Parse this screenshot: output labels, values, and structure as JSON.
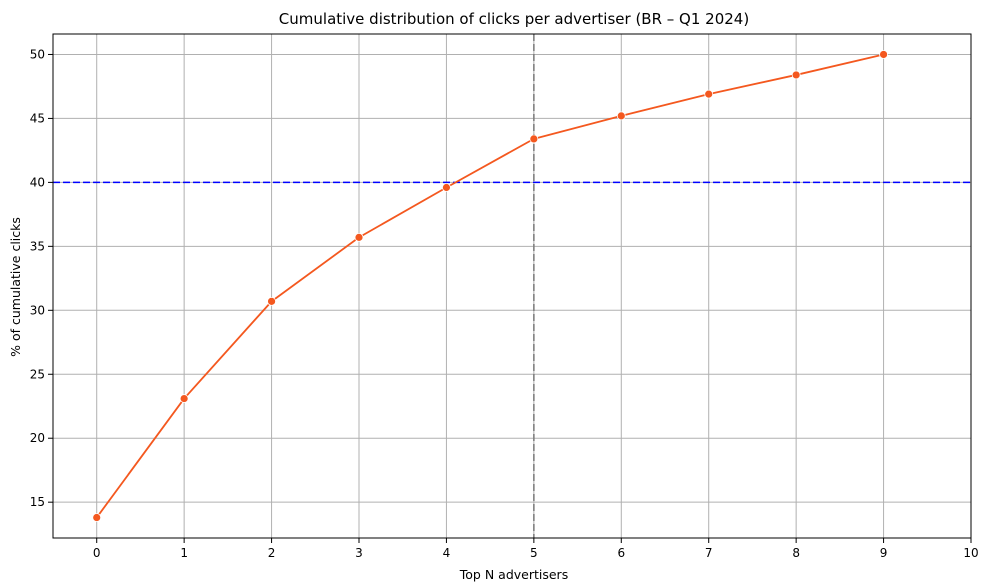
{
  "chart_data": {
    "type": "line",
    "title": "Cumulative distribution of clicks per advertiser (BR – Q1 2024)",
    "xlabel": "Top N advertisers",
    "ylabel": "% of cumulative clicks",
    "x": [
      0,
      1,
      2,
      3,
      4,
      5,
      6,
      7,
      8,
      9
    ],
    "series": [
      {
        "values": [
          13.8,
          23.1,
          30.7,
          35.7,
          39.6,
          43.4,
          45.2,
          46.9,
          48.4,
          50.0
        ],
        "color": "#f4581f"
      }
    ],
    "xlim": [
      -0.5,
      10
    ],
    "ylim": [
      12.2,
      51.6
    ],
    "xticks": [
      "0",
      "1",
      "2",
      "3",
      "4",
      "5",
      "6",
      "7",
      "8",
      "9",
      "10"
    ],
    "yticks": [
      "15",
      "20",
      "25",
      "30",
      "35",
      "40",
      "45",
      "50"
    ],
    "grid": true,
    "reference_lines": [
      {
        "orientation": "horizontal",
        "value": 40,
        "color": "#0000ff",
        "style": "dashed"
      },
      {
        "orientation": "vertical",
        "value": 5,
        "color": "#808080",
        "style": "dashed"
      }
    ]
  }
}
